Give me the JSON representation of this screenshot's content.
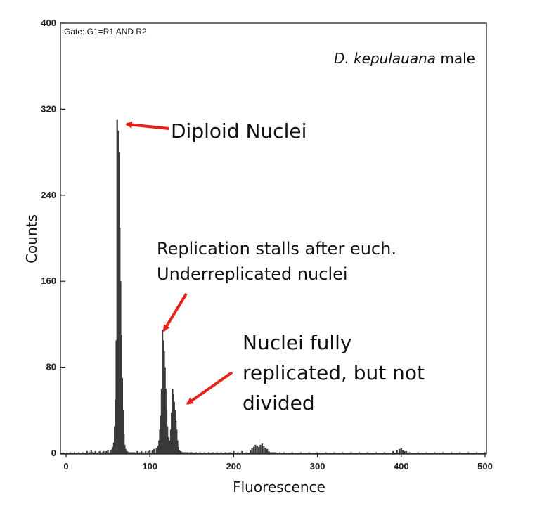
{
  "chart_data": {
    "type": "histogram",
    "gate_label": "Gate: G1=R1 AND R2",
    "species_italic": "D. kepulauana",
    "species_suffix": " male",
    "xlabel": "Fluorescence",
    "ylabel": "Counts",
    "xlim": [
      0,
      500
    ],
    "ylim": [
      0,
      400
    ],
    "xticks": [
      "0",
      "100",
      "200",
      "300",
      "400",
      "500"
    ],
    "yticks": [
      "0",
      "80",
      "160",
      "240",
      "320",
      "400"
    ],
    "grid": false,
    "x": [
      5,
      10,
      15,
      20,
      25,
      28,
      30,
      32,
      35,
      38,
      40,
      43,
      45,
      48,
      50,
      53,
      55,
      56,
      57,
      58,
      59,
      60,
      61,
      62,
      63,
      64,
      65,
      66,
      67,
      68,
      69,
      70,
      71,
      72,
      73,
      74,
      75,
      76,
      77,
      78,
      80,
      82,
      85,
      88,
      90,
      92,
      95,
      98,
      100,
      103,
      105,
      108,
      110,
      111,
      112,
      113,
      114,
      115,
      116,
      117,
      118,
      119,
      120,
      121,
      122,
      123,
      124,
      125,
      126,
      127,
      128,
      129,
      130,
      131,
      132,
      133,
      134,
      135,
      136,
      137,
      138,
      139,
      140,
      141,
      142,
      143,
      145,
      148,
      150,
      155,
      160,
      165,
      170,
      175,
      180,
      185,
      190,
      195,
      200,
      205,
      210,
      215,
      220,
      222,
      224,
      226,
      228,
      230,
      232,
      234,
      236,
      238,
      240,
      242,
      244,
      246,
      248,
      250,
      255,
      260,
      270,
      280,
      290,
      300,
      310,
      320,
      330,
      340,
      350,
      360,
      370,
      380,
      390,
      395,
      398,
      400,
      402,
      404,
      406,
      410,
      420,
      430,
      440,
      450,
      460,
      470,
      480,
      490,
      500
    ],
    "y": [
      1,
      1,
      1,
      1,
      2,
      1,
      3,
      1,
      2,
      1,
      2,
      1,
      2,
      2,
      3,
      3,
      4,
      6,
      10,
      25,
      50,
      105,
      310,
      300,
      280,
      210,
      160,
      110,
      70,
      40,
      18,
      8,
      4,
      2,
      2,
      1,
      1,
      1,
      1,
      1,
      1,
      1,
      2,
      1,
      2,
      1,
      2,
      2,
      3,
      3,
      4,
      5,
      7,
      12,
      22,
      35,
      60,
      115,
      105,
      95,
      80,
      60,
      40,
      25,
      15,
      10,
      12,
      22,
      38,
      60,
      55,
      48,
      40,
      30,
      22,
      12,
      6,
      3,
      2,
      2,
      1,
      1,
      1,
      1,
      1,
      1,
      1,
      1,
      1,
      1,
      1,
      1,
      1,
      1,
      1,
      1,
      1,
      1,
      2,
      1,
      2,
      1,
      3,
      5,
      6,
      8,
      7,
      6,
      8,
      9,
      7,
      5,
      4,
      2,
      1,
      1,
      1,
      1,
      1,
      1,
      1,
      1,
      1,
      1,
      1,
      1,
      1,
      1,
      1,
      1,
      1,
      1,
      2,
      3,
      4,
      5,
      3,
      2,
      2,
      1,
      1,
      1,
      1,
      1,
      1,
      1,
      1,
      1,
      1
    ],
    "annotations": [
      {
        "id": "diploid",
        "lines": [
          "Diploid Nuclei"
        ],
        "point_x": 62,
        "point_y": 306
      },
      {
        "id": "underreplicated",
        "lines": [
          "Replication stalls after euch.",
          "Underreplicated nuclei"
        ],
        "point_x": 115,
        "point_y": 118
      },
      {
        "id": "replicated",
        "lines": [
          "Nuclei fully",
          "replicated, but not",
          "divided"
        ],
        "point_x": 133,
        "point_y": 50
      }
    ],
    "colors": {
      "bars": "#3a3a3a",
      "arrow": "#e8201a",
      "frame": "#222222"
    }
  }
}
